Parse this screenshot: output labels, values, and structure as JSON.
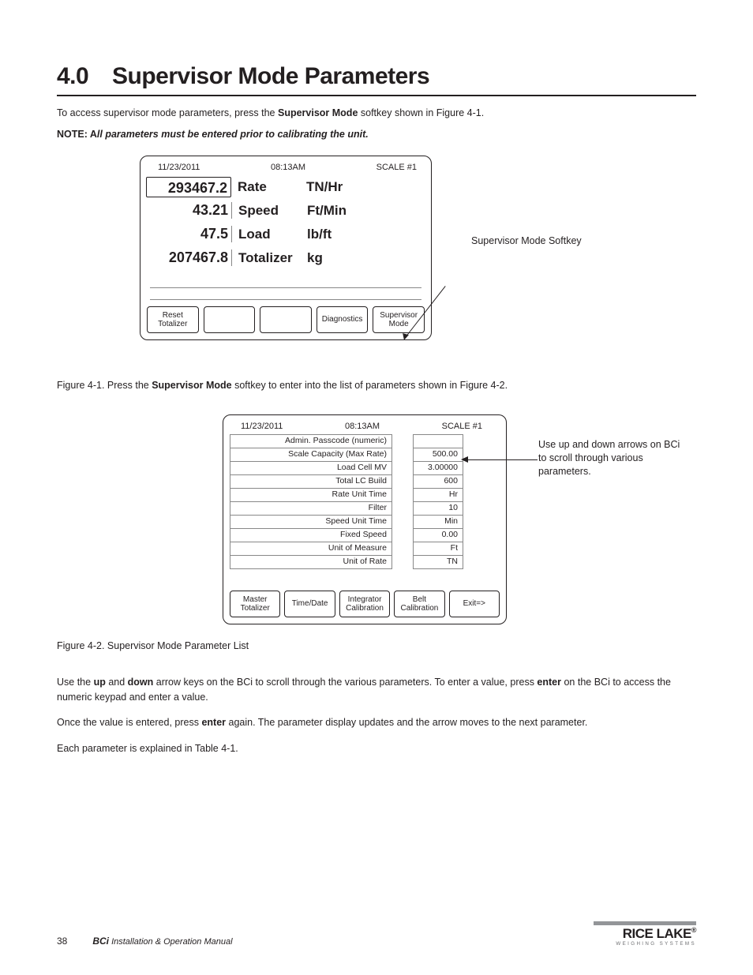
{
  "chapter": {
    "num": "4.0",
    "title": "Supervisor Mode Parameters"
  },
  "intro": "To access supervisor mode parameters, press the ",
  "intro_soft": "Supervisor Mode",
  "intro2": " softkey shown in Figure 4-1.",
  "note_label": "NOTE: A",
  "note_text": "ll parameters must be entered prior to calibrating the unit.",
  "screen1": {
    "date": "11/23/2011",
    "time": "08:13AM",
    "scale": "SCALE #1",
    "rows": [
      {
        "val": "293467.2",
        "lbl": "Rate",
        "unit": "TN/Hr"
      },
      {
        "val": "43.21",
        "lbl": "Speed",
        "unit": "Ft/Min"
      },
      {
        "val": "47.5",
        "lbl": "Load",
        "unit": "lb/ft"
      },
      {
        "val": "207467.8",
        "lbl": "Totalizer",
        "unit": "kg"
      }
    ],
    "softkeys": [
      "Reset Totalizer",
      "",
      "",
      "Diagnostics",
      "Supervisor Mode"
    ],
    "callout": "Supervisor Mode Softkey"
  },
  "fig1_cap_pre": "Figure 4-1. Press the ",
  "fig1_cap_soft": "Supervisor Mode",
  "fig1_cap_post": " softkey to enter into the list of parameters shown in Figure 4-2.",
  "screen2": {
    "date": "11/23/2011",
    "time": "08:13AM",
    "scale": "SCALE #1",
    "params": [
      {
        "lbl": "Admin. Passcode (numeric)",
        "val": ""
      },
      {
        "lbl": "Scale Capacity (Max Rate)",
        "val": "500.00"
      },
      {
        "lbl": "Load Cell MV",
        "val": "3.00000"
      },
      {
        "lbl": "Total LC Build",
        "val": "600"
      },
      {
        "lbl": "Rate Unit Time",
        "val": "Hr"
      },
      {
        "lbl": "Filter",
        "val": "10"
      },
      {
        "lbl": "Speed Unit Time",
        "val": "Min"
      },
      {
        "lbl": "Fixed Speed",
        "val": "0.00"
      },
      {
        "lbl": "Unit of Measure",
        "val": "Ft"
      },
      {
        "lbl": "Unit of Rate",
        "val": "TN"
      }
    ],
    "softkeys": [
      "Master Totalizer",
      "Time/Date",
      "Integrator Calibration",
      "Belt Calibration",
      "Exit=>"
    ],
    "callout": "Use up and down arrows on BCi to scroll through various parameters."
  },
  "fig2_cap": "Figure 4-2. Supervisor Mode Parameter List",
  "para1a": "Use the ",
  "para1b": "up",
  "para1c": " and ",
  "para1d": "down",
  "para1e": " arrow keys on the BCi to scroll through the various parameters. To enter a value, press ",
  "para1f": "enter",
  "para1g": " on the BCi to access the numeric keypad and enter a value.",
  "para2a": "Once the value is entered, press ",
  "para2b": "enter",
  "para2c": " again. The parameter display updates and the arrow moves to the next parameter.",
  "para3": "Each parameter is explained in Table 4-1.",
  "footer": {
    "page": "38",
    "book_i": "BCi",
    "book_rest": " Installation & Operation Manual",
    "logo_name": "RICE LAKE",
    "logo_tag": "WEIGHING SYSTEMS"
  }
}
